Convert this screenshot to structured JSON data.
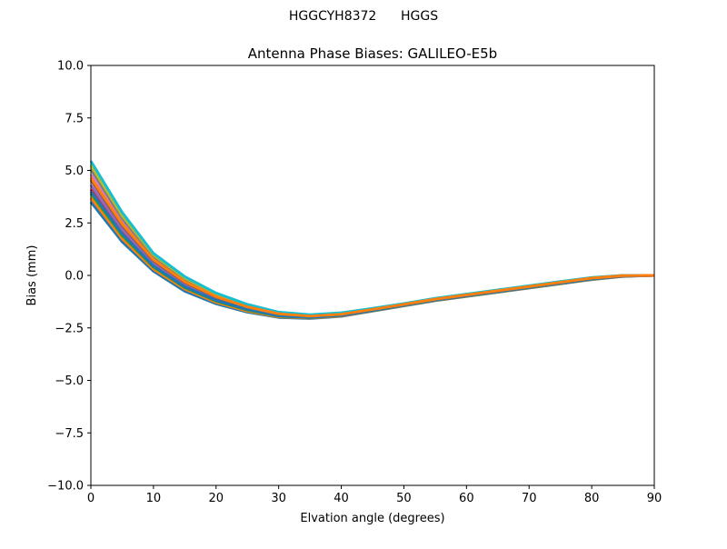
{
  "suptitle": "HGGCYH8372      HGGS",
  "chart_data": {
    "type": "line",
    "title": "Antenna Phase Biases: GALILEO-E5b",
    "xlabel": "Elvation angle (degrees)",
    "ylabel": "Bias (mm)",
    "xlim": [
      0,
      90
    ],
    "ylim": [
      -10,
      10
    ],
    "xticks": [
      0,
      10,
      20,
      30,
      40,
      50,
      60,
      70,
      80,
      90
    ],
    "yticks": [
      -10.0,
      -7.5,
      -5.0,
      -2.5,
      0.0,
      2.5,
      5.0,
      7.5,
      10.0
    ],
    "ytick_labels": [
      "−10.0",
      "−7.5",
      "−5.0",
      "−2.5",
      "0.0",
      "2.5",
      "5.0",
      "7.5",
      "10.0"
    ],
    "xtick_labels": [
      "0",
      "10",
      "20",
      "30",
      "40",
      "50",
      "60",
      "70",
      "80",
      "90"
    ],
    "grid": false,
    "legend": "none",
    "series_colors": [
      "#1f77b4",
      "#ff7f0e",
      "#2ca02c",
      "#d62728",
      "#9467bd",
      "#8c564b",
      "#e377c2",
      "#7f7f7f",
      "#bcbd22",
      "#17becf"
    ],
    "x": [
      0,
      5,
      10,
      15,
      20,
      25,
      30,
      35,
      40,
      45,
      50,
      55,
      60,
      65,
      70,
      75,
      80,
      85,
      90
    ],
    "series": [
      {
        "values": [
          3.5,
          1.6,
          0.2,
          -0.75,
          -1.35,
          -1.75,
          -2.0,
          -2.05,
          -1.95,
          -1.7,
          -1.45,
          -1.2,
          -1.0,
          -0.8,
          -0.6,
          -0.4,
          -0.2,
          -0.05,
          0.0
        ]
      },
      {
        "values": [
          3.7,
          1.75,
          0.3,
          -0.65,
          -1.28,
          -1.7,
          -1.97,
          -2.03,
          -1.93,
          -1.69,
          -1.44,
          -1.19,
          -0.99,
          -0.79,
          -0.59,
          -0.39,
          -0.19,
          -0.04,
          0.0
        ]
      },
      {
        "values": [
          3.9,
          1.9,
          0.4,
          -0.58,
          -1.22,
          -1.65,
          -1.94,
          -2.01,
          -1.91,
          -1.68,
          -1.43,
          -1.18,
          -0.98,
          -0.78,
          -0.58,
          -0.38,
          -0.18,
          -0.03,
          0.0
        ]
      },
      {
        "values": [
          4.1,
          2.05,
          0.5,
          -0.5,
          -1.16,
          -1.6,
          -1.91,
          -1.99,
          -1.9,
          -1.66,
          -1.42,
          -1.17,
          -0.97,
          -0.77,
          -0.57,
          -0.37,
          -0.17,
          -0.03,
          0.0
        ]
      },
      {
        "values": [
          4.3,
          2.2,
          0.6,
          -0.42,
          -1.1,
          -1.56,
          -1.88,
          -1.97,
          -1.88,
          -1.65,
          -1.41,
          -1.16,
          -0.96,
          -0.76,
          -0.56,
          -0.36,
          -0.16,
          -0.02,
          0.0
        ]
      },
      {
        "values": [
          4.55,
          2.38,
          0.7,
          -0.34,
          -1.04,
          -1.52,
          -1.85,
          -1.95,
          -1.86,
          -1.63,
          -1.39,
          -1.14,
          -0.94,
          -0.74,
          -0.54,
          -0.34,
          -0.14,
          -0.02,
          0.0
        ]
      },
      {
        "values": [
          4.8,
          2.55,
          0.8,
          -0.26,
          -0.98,
          -1.48,
          -1.82,
          -1.93,
          -1.84,
          -1.62,
          -1.38,
          -1.13,
          -0.93,
          -0.73,
          -0.53,
          -0.33,
          -0.13,
          -0.01,
          0.0
        ]
      },
      {
        "values": [
          5.05,
          2.72,
          0.9,
          -0.18,
          -0.92,
          -1.44,
          -1.79,
          -1.91,
          -1.82,
          -1.6,
          -1.36,
          -1.11,
          -0.91,
          -0.71,
          -0.51,
          -0.31,
          -0.12,
          -0.01,
          0.0
        ]
      },
      {
        "values": [
          5.25,
          2.85,
          0.98,
          -0.12,
          -0.88,
          -1.41,
          -1.77,
          -1.89,
          -1.8,
          -1.59,
          -1.35,
          -1.1,
          -0.9,
          -0.7,
          -0.5,
          -0.3,
          -0.11,
          0.0,
          0.0
        ]
      },
      {
        "values": [
          5.45,
          3.0,
          1.05,
          -0.06,
          -0.84,
          -1.38,
          -1.75,
          -1.87,
          -1.78,
          -1.57,
          -1.34,
          -1.09,
          -0.89,
          -0.69,
          -0.49,
          -0.29,
          -0.1,
          0.0,
          0.0
        ]
      },
      {
        "values": [
          4.0,
          1.98,
          0.45,
          -0.54,
          -1.19,
          -1.62,
          -1.92,
          -2.0,
          -1.9,
          -1.67,
          -1.42,
          -1.17,
          -0.97,
          -0.77,
          -0.57,
          -0.37,
          -0.17,
          -0.03,
          0.0
        ]
      },
      {
        "values": [
          4.65,
          2.45,
          0.75,
          -0.3,
          -1.01,
          -1.5,
          -1.83,
          -1.94,
          -1.85,
          -1.62,
          -1.38,
          -1.13,
          -0.93,
          -0.73,
          -0.53,
          -0.33,
          -0.13,
          -0.01,
          0.0
        ]
      }
    ]
  }
}
